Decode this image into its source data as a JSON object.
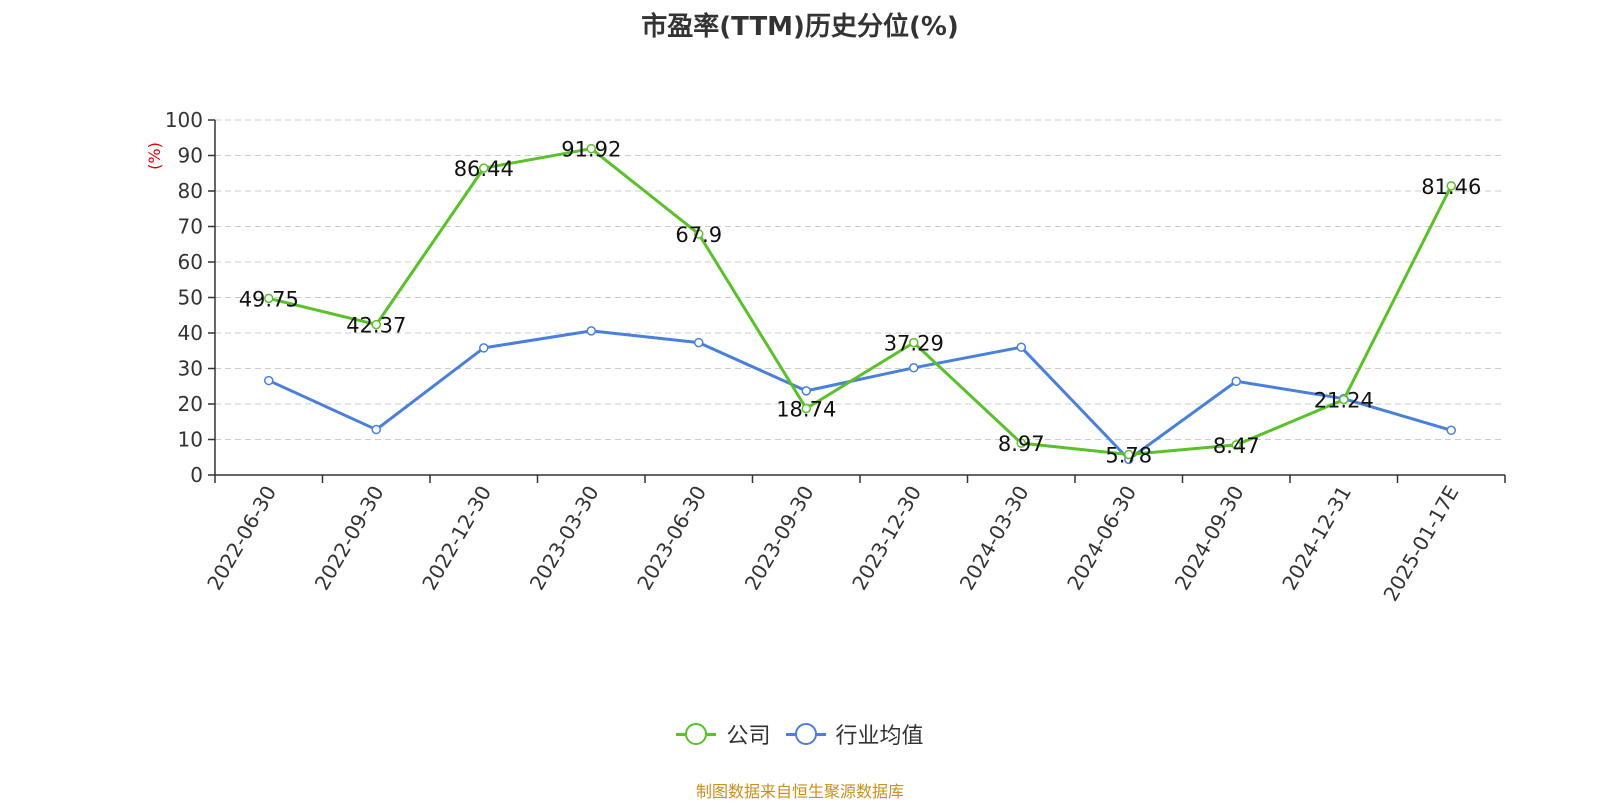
{
  "title": "市盈率(TTM)历史分位(%)",
  "source": "制图数据来自恒生聚源数据库",
  "chart_data": {
    "type": "line",
    "ylabel": "(%)",
    "ylim": [
      0,
      100
    ],
    "yticks": [
      0,
      10,
      20,
      30,
      40,
      50,
      60,
      70,
      80,
      90,
      100
    ],
    "grid": true,
    "legend_position": "bottom",
    "categories": [
      "2022-06-30",
      "2022-09-30",
      "2022-12-30",
      "2023-03-30",
      "2023-06-30",
      "2023-09-30",
      "2023-12-30",
      "2024-03-30",
      "2024-06-30",
      "2024-09-30",
      "2024-12-31",
      "2025-01-17E"
    ],
    "series": [
      {
        "name": "公司",
        "color": "#5ac12a",
        "values": [
          49.75,
          42.37,
          86.44,
          91.92,
          67.9,
          18.74,
          37.29,
          8.97,
          5.78,
          8.47,
          21.24,
          81.46
        ],
        "labels": [
          "49.75",
          "42.37",
          "86.44",
          "91.92",
          "67.9",
          "18.74",
          "37.29",
          "8.97",
          "5.78",
          "8.47",
          "21.24",
          "81.46"
        ]
      },
      {
        "name": "行业均值",
        "color": "#4a7fdc",
        "values": [
          26.6,
          12.8,
          35.8,
          40.6,
          37.3,
          23.7,
          30.2,
          null,
          4.4,
          26.4,
          21.5,
          12.6
        ],
        "values_full": [
          26.6,
          12.8,
          35.8,
          40.6,
          37.3,
          23.7,
          30.2,
          36.0,
          4.4,
          26.4,
          21.5,
          12.6
        ]
      }
    ]
  }
}
